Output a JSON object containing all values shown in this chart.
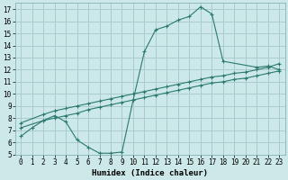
{
  "xlabel": "Humidex (Indice chaleur)",
  "background_color": "#cce8e8",
  "grid_color": "#aacccc",
  "line_color": "#2a7a70",
  "xlim": [
    -0.5,
    23.5
  ],
  "ylim": [
    5,
    17.5
  ],
  "xticks": [
    0,
    1,
    2,
    3,
    4,
    5,
    6,
    7,
    8,
    9,
    10,
    11,
    12,
    13,
    14,
    15,
    16,
    17,
    18,
    19,
    20,
    21,
    22,
    23
  ],
  "yticks": [
    5,
    6,
    7,
    8,
    9,
    10,
    11,
    12,
    13,
    14,
    15,
    16,
    17
  ],
  "line1_x": [
    0,
    1,
    2,
    3,
    4,
    5,
    6,
    7,
    8,
    9,
    10,
    11,
    12,
    13,
    14,
    15,
    16,
    17,
    18,
    21,
    22,
    23
  ],
  "line1_y": [
    6.5,
    7.2,
    7.8,
    8.2,
    7.7,
    6.2,
    5.6,
    5.1,
    5.1,
    5.2,
    9.5,
    13.5,
    15.3,
    15.6,
    16.1,
    16.4,
    17.2,
    16.6,
    12.7,
    12.2,
    12.3,
    12.0
  ],
  "line2_x": [
    0,
    2,
    3,
    4,
    5,
    6,
    7,
    8,
    9,
    10,
    11,
    12,
    13,
    14,
    15,
    16,
    17,
    18,
    19,
    20,
    21,
    22,
    23
  ],
  "line2_y": [
    7.6,
    8.3,
    8.6,
    8.8,
    9.0,
    9.2,
    9.4,
    9.6,
    9.8,
    10.0,
    10.2,
    10.4,
    10.6,
    10.8,
    11.0,
    11.2,
    11.4,
    11.5,
    11.7,
    11.8,
    12.0,
    12.2,
    12.5
  ],
  "line3_x": [
    0,
    2,
    3,
    4,
    5,
    6,
    7,
    8,
    9,
    10,
    11,
    12,
    13,
    14,
    15,
    16,
    17,
    18,
    19,
    20,
    21,
    22,
    23
  ],
  "line3_y": [
    7.2,
    7.8,
    8.0,
    8.2,
    8.4,
    8.7,
    8.9,
    9.1,
    9.3,
    9.5,
    9.7,
    9.9,
    10.1,
    10.3,
    10.5,
    10.7,
    10.9,
    11.0,
    11.2,
    11.3,
    11.5,
    11.7,
    11.9
  ],
  "tick_fontsize": 5.5,
  "xlabel_fontsize": 6.5
}
